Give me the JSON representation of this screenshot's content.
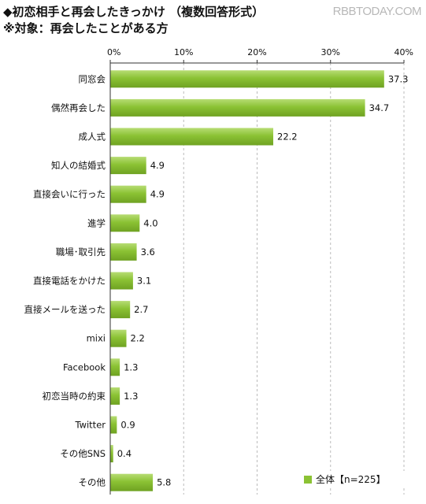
{
  "header": {
    "title": "◆初恋相手と再会したきっかけ （複数回答形式）",
    "subtitle": "※対象：再会したことがある方",
    "watermark": "RBBTODAY.COM"
  },
  "colors": {
    "bar": "#8bc234",
    "bar_light": "#b7dc74",
    "bar_dark": "#6fa222",
    "axis": "#333333",
    "grid": "#bbbbbb",
    "background": "#ffffff"
  },
  "chart_data": {
    "type": "bar",
    "orientation": "horizontal",
    "title": "◆初恋相手と再会したきっかけ （複数回答形式）",
    "subtitle": "※対象：再会したことがある方",
    "categories": [
      "同窓会",
      "偶然再会した",
      "成人式",
      "知人の結婚式",
      "直接会いに行った",
      "進学",
      "職場･取引先",
      "直接電話をかけた",
      "直接メールを送った",
      "mixi",
      "Facebook",
      "初恋当時の約束",
      "Twitter",
      "その他SNS",
      "その他"
    ],
    "series": [
      {
        "name": "全体【n=225】",
        "values": [
          37.3,
          34.7,
          22.2,
          4.9,
          4.9,
          4.0,
          3.6,
          3.1,
          2.7,
          2.2,
          1.3,
          1.3,
          0.9,
          0.4,
          5.8
        ],
        "labels": [
          "37.3",
          "34.7",
          "22.2",
          "4.9",
          "4.9",
          "4.0",
          "3.6",
          "3.1",
          "2.7",
          "2.2",
          "1.3",
          "1.3",
          "0.9",
          "0.4",
          "5.8"
        ]
      }
    ],
    "xlim": [
      0,
      40
    ],
    "x_ticks": [
      "0%",
      "10%",
      "20%",
      "30%",
      "40%"
    ],
    "x_tick_values": [
      0,
      10,
      20,
      30,
      40
    ],
    "xlabel": "",
    "ylabel": "",
    "grid": true,
    "legend_position": "bottom-right"
  }
}
